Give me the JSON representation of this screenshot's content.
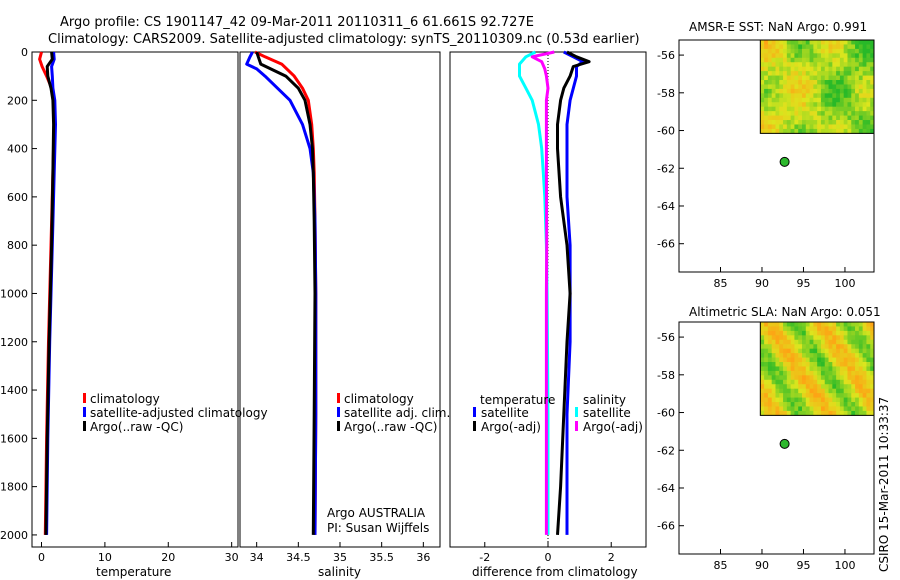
{
  "header": {
    "line1": "Argo profile: CS 1901147_42 09-Mar-2011 20110311_6 61.661S 92.727E",
    "line2": "Climatology: CARS2009. Satellite-adjusted climatology: synTS_20110309.nc (0.53d earlier)"
  },
  "credit": "CSIRO 15-Mar-2011 10:33:37",
  "colors": {
    "red": "#ff0000",
    "blue": "#0000ff",
    "black": "#000000",
    "cyan": "#00ffff",
    "magenta": "#ff00ff"
  },
  "chart_data": [
    {
      "type": "line",
      "name": "temperature",
      "xlabel": "temperature",
      "xlim": [
        -1.5,
        31
      ],
      "ylim": [
        0,
        2050
      ],
      "xticks": [
        "0",
        "10",
        "20",
        "30"
      ],
      "xtick_values": [
        0,
        10,
        20,
        30
      ],
      "yticks": [
        "0",
        "200",
        "400",
        "600",
        "800",
        "1000",
        "1200",
        "1400",
        "1600",
        "1800",
        "2000"
      ],
      "ytick_values": [
        0,
        200,
        400,
        600,
        800,
        1000,
        1200,
        1400,
        1600,
        1800,
        2000
      ],
      "legend": [
        "climatology",
        "satellite-adjusted climatology",
        "Argo(..raw -QC)"
      ],
      "series": [
        {
          "name": "climatology",
          "color": "#ff0000",
          "depth": [
            0,
            30,
            60,
            100,
            150,
            200,
            300,
            500,
            800,
            1200,
            1600,
            2000
          ],
          "values": [
            0.0,
            -0.3,
            0.1,
            0.8,
            1.6,
            1.9,
            2.0,
            1.8,
            1.5,
            1.1,
            0.8,
            0.6
          ]
        },
        {
          "name": "satellite-adjusted climatology",
          "color": "#0000ff",
          "depth": [
            0,
            30,
            60,
            100,
            150,
            200,
            300,
            500,
            800,
            1200,
            1600,
            2000
          ],
          "values": [
            1.9,
            2.0,
            1.6,
            1.7,
            1.8,
            2.1,
            2.2,
            2.0,
            1.7,
            1.3,
            1.0,
            0.8
          ]
        },
        {
          "name": "Argo(..raw -QC)",
          "color": "#000000",
          "depth": [
            0,
            30,
            60,
            100,
            150,
            200,
            300,
            500,
            800,
            1200,
            1600,
            2000
          ],
          "values": [
            1.6,
            1.7,
            0.9,
            1.0,
            1.5,
            1.8,
            1.9,
            1.8,
            1.6,
            1.2,
            0.9,
            0.7
          ]
        }
      ]
    },
    {
      "type": "line",
      "name": "salinity",
      "xlabel": "salinity",
      "xlim": [
        33.8,
        36.2
      ],
      "ylim": [
        0,
        2050
      ],
      "xticks": [
        "34",
        "34.5",
        "35",
        "35.5",
        "36"
      ],
      "xtick_values": [
        34,
        34.5,
        35,
        35.5,
        36
      ],
      "legend": [
        "climatology",
        "satellite adj. clim.",
        "Argo(..raw -QC)"
      ],
      "annotation": [
        "Argo AUSTRALIA",
        "PI: Susan Wijffels"
      ],
      "series": [
        {
          "name": "climatology",
          "color": "#ff0000",
          "depth": [
            0,
            20,
            50,
            100,
            150,
            200,
            300,
            400,
            500,
            700,
            1000,
            1500,
            2000
          ],
          "values": [
            33.98,
            34.1,
            34.3,
            34.45,
            34.55,
            34.62,
            34.66,
            34.68,
            34.69,
            34.7,
            34.71,
            34.71,
            34.7
          ]
        },
        {
          "name": "satellite adj. clim.",
          "color": "#0000ff",
          "depth": [
            0,
            20,
            50,
            70,
            100,
            150,
            200,
            300,
            400,
            500,
            700,
            1000,
            1500,
            2000
          ],
          "values": [
            33.95,
            33.92,
            33.88,
            34.0,
            34.1,
            34.25,
            34.4,
            34.55,
            34.64,
            34.68,
            34.7,
            34.71,
            34.71,
            34.7
          ]
        },
        {
          "name": "Argo(..raw -QC)",
          "color": "#000000",
          "depth": [
            0,
            20,
            50,
            100,
            150,
            200,
            300,
            400,
            500,
            700,
            1000,
            1500,
            2000
          ],
          "values": [
            34.0,
            34.02,
            34.05,
            34.35,
            34.5,
            34.58,
            34.64,
            34.67,
            34.68,
            34.69,
            34.7,
            34.69,
            34.68
          ]
        }
      ]
    },
    {
      "type": "line",
      "name": "difference",
      "xlabel": "difference from climatology",
      "xlim": [
        -3.1,
        3.1
      ],
      "ylim": [
        0,
        2050
      ],
      "xticks": [
        "-2",
        "0",
        "2"
      ],
      "xtick_values": [
        -2,
        0,
        2
      ],
      "legend_headers": [
        "temperature",
        "salinity"
      ],
      "legend": [
        "satellite",
        "Argo(-adj)",
        "satellite",
        "Argo(-adj)"
      ],
      "series": [
        {
          "name": "temperature satellite",
          "color": "#0000ff",
          "depth": [
            0,
            20,
            40,
            60,
            100,
            150,
            200,
            300,
            400,
            600,
            800,
            1000,
            1200,
            1500,
            1800,
            2000
          ],
          "values": [
            0.5,
            0.8,
            1.1,
            0.9,
            0.9,
            0.8,
            0.7,
            0.6,
            0.6,
            0.6,
            0.7,
            0.7,
            0.7,
            0.6,
            0.6,
            0.6
          ]
        },
        {
          "name": "temperature Argo(-adj)",
          "color": "#000000",
          "depth": [
            0,
            20,
            40,
            60,
            100,
            150,
            200,
            300,
            400,
            600,
            800,
            1000,
            1200,
            1500,
            1800,
            2000
          ],
          "values": [
            0.6,
            0.9,
            1.3,
            0.8,
            0.7,
            0.5,
            0.4,
            0.3,
            0.3,
            0.4,
            0.6,
            0.7,
            0.6,
            0.5,
            0.4,
            0.3
          ]
        },
        {
          "name": "salinity satellite",
          "color": "#00ffff",
          "depth": [
            0,
            20,
            50,
            100,
            150,
            200,
            300,
            400,
            500,
            600,
            800,
            1000,
            1500,
            2000
          ],
          "values": [
            -0.4,
            -0.7,
            -0.9,
            -0.9,
            -0.7,
            -0.5,
            -0.3,
            -0.2,
            -0.15,
            -0.1,
            -0.05,
            -0.03,
            0.0,
            0.0
          ]
        },
        {
          "name": "salinity Argo(-adj)",
          "color": "#ff00ff",
          "depth": [
            0,
            20,
            40,
            70,
            100,
            150,
            200,
            300,
            500,
            800,
            1000,
            1500,
            2000
          ],
          "values": [
            0.2,
            -0.5,
            -0.2,
            -0.1,
            -0.05,
            0.0,
            -0.05,
            -0.05,
            -0.05,
            -0.04,
            -0.05,
            -0.05,
            -0.05
          ]
        }
      ]
    },
    {
      "type": "heatmap",
      "name": "sst-map",
      "title": "AMSR-E SST: NaN Argo: 0.991",
      "xlim": [
        80,
        103.5
      ],
      "ylim": [
        -67.5,
        -55.2
      ],
      "xticks": [
        "85",
        "90",
        "95",
        "100"
      ],
      "xtick_values": [
        85,
        90,
        95,
        100
      ],
      "yticks": [
        "-56",
        "-58",
        "-60",
        "-62",
        "-64",
        "-66"
      ],
      "ytick_values": [
        -56,
        -58,
        -60,
        -62,
        -64,
        -66
      ],
      "field_extent": {
        "lon": [
          89.8,
          103.5
        ],
        "lat": [
          -60.15,
          -55.2
        ]
      },
      "float_position": {
        "lon": 92.727,
        "lat": -61.661
      }
    },
    {
      "type": "heatmap",
      "name": "sla-map",
      "title": "Altimetric SLA: NaN Argo: 0.051",
      "xlim": [
        80,
        103.5
      ],
      "ylim": [
        -67.5,
        -55.2
      ],
      "xticks": [
        "85",
        "90",
        "95",
        "100"
      ],
      "xtick_values": [
        85,
        90,
        95,
        100
      ],
      "yticks": [
        "-56",
        "-58",
        "-60",
        "-62",
        "-64",
        "-66"
      ],
      "ytick_values": [
        -56,
        -58,
        -60,
        -62,
        -64,
        -66
      ],
      "field_extent": {
        "lon": [
          89.8,
          103.5
        ],
        "lat": [
          -60.15,
          -55.2
        ]
      },
      "float_position": {
        "lon": 92.727,
        "lat": -61.661
      }
    }
  ]
}
